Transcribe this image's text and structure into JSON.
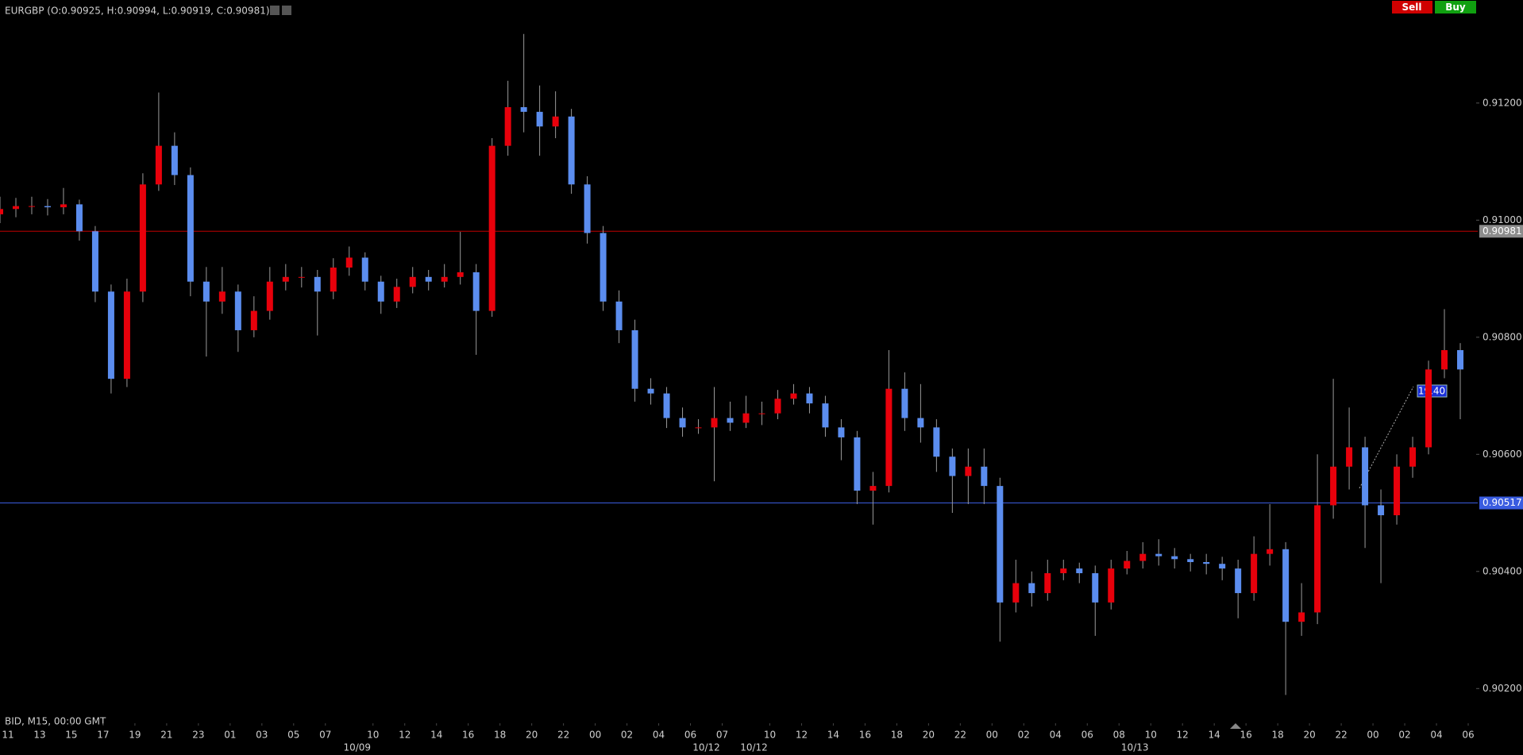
{
  "chart_data": {
    "type": "candlestick",
    "title": "EURGBP (O:0.90925, H:0.90994, L:0.90919, C:0.90981)",
    "footer": "BID, M15, 00:00 GMT",
    "buttons": [
      "Sell",
      "Buy"
    ],
    "annotation": "19.40",
    "up_color": "#e8000b",
    "down_color": "#5b8def",
    "xlim": [
      0,
      372
    ],
    "ylim": [
      0.90157,
      0.91376
    ],
    "yticks": [
      {
        "value": 0.902,
        "label": "0.90200"
      },
      {
        "value": 0.904,
        "label": "0.90400"
      },
      {
        "value": 0.906,
        "label": "0.90600"
      },
      {
        "value": 0.908,
        "label": "0.90800"
      },
      {
        "value": 0.91,
        "label": "0.91000"
      },
      {
        "value": 0.912,
        "label": "0.91200"
      }
    ],
    "xticks": [
      {
        "value": 2,
        "label": "11"
      },
      {
        "value": 10,
        "label": "13"
      },
      {
        "value": 18,
        "label": "15"
      },
      {
        "value": 26,
        "label": "17"
      },
      {
        "value": 34,
        "label": "19"
      },
      {
        "value": 42,
        "label": "21"
      },
      {
        "value": 50,
        "label": "23"
      },
      {
        "value": 58,
        "label": "01"
      },
      {
        "value": 66,
        "label": "03"
      },
      {
        "value": 74,
        "label": "05"
      },
      {
        "value": 82,
        "label": "07"
      },
      {
        "value": 94,
        "label": "10"
      },
      {
        "value": 102,
        "label": "12"
      },
      {
        "value": 110,
        "label": "14"
      },
      {
        "value": 118,
        "label": "16"
      },
      {
        "value": 126,
        "label": "18"
      },
      {
        "value": 134,
        "label": "20"
      },
      {
        "value": 142,
        "label": "22"
      },
      {
        "value": 150,
        "label": "00"
      },
      {
        "value": 158,
        "label": "02"
      },
      {
        "value": 166,
        "label": "04"
      },
      {
        "value": 174,
        "label": "06"
      },
      {
        "value": 182,
        "label": "07"
      },
      {
        "value": 194,
        "label": "10"
      },
      {
        "value": 202,
        "label": "12"
      },
      {
        "value": 210,
        "label": "14"
      },
      {
        "value": 218,
        "label": "16"
      },
      {
        "value": 226,
        "label": "18"
      },
      {
        "value": 234,
        "label": "20"
      },
      {
        "value": 242,
        "label": "22"
      },
      {
        "value": 250,
        "label": "00"
      },
      {
        "value": 258,
        "label": "02"
      },
      {
        "value": 266,
        "label": "04"
      },
      {
        "value": 274,
        "label": "06"
      },
      {
        "value": 282,
        "label": "08"
      },
      {
        "value": 290,
        "label": "10"
      },
      {
        "value": 298,
        "label": "12"
      },
      {
        "value": 306,
        "label": "14"
      },
      {
        "value": 314,
        "label": "16"
      },
      {
        "value": 322,
        "label": "18"
      },
      {
        "value": 330,
        "label": "20"
      },
      {
        "value": 338,
        "label": "22"
      },
      {
        "value": 346,
        "label": "00"
      },
      {
        "value": 354,
        "label": "02"
      },
      {
        "value": 362,
        "label": "04"
      },
      {
        "value": 370,
        "label": "06"
      }
    ],
    "date_labels": [
      {
        "value": 90,
        "label": "10/09"
      },
      {
        "value": 178,
        "label": "10/12"
      },
      {
        "value": 190,
        "label": "10/12"
      },
      {
        "value": 286,
        "label": "10/13"
      }
    ],
    "hlines": [
      {
        "value": 0.90981,
        "label": "0.90981",
        "color": "#c00000",
        "label_bg": "#8c8c8c"
      },
      {
        "value": 0.90517,
        "label": "0.90517",
        "color": "#3a5ce0",
        "label_bg": "#3a5ce0"
      }
    ],
    "x": [
      0,
      4,
      8,
      12,
      16,
      20,
      24,
      28,
      32,
      36,
      40,
      44,
      48,
      52,
      56,
      60,
      64,
      68,
      72,
      76,
      80,
      84,
      88,
      92,
      96,
      100,
      104,
      108,
      112,
      116,
      120,
      124,
      128,
      132,
      136,
      140,
      144,
      148,
      152,
      156,
      160,
      164,
      168,
      172,
      176,
      180,
      184,
      188,
      192,
      196,
      200,
      204,
      208,
      212,
      216,
      220,
      224,
      228,
      232,
      236,
      240,
      244,
      248,
      252,
      256,
      260,
      264,
      268,
      272,
      276,
      280,
      284,
      288,
      292,
      296,
      300,
      304,
      308,
      312,
      316,
      320,
      324,
      328,
      332,
      336,
      340,
      344,
      348,
      352,
      356,
      360,
      364,
      368
    ],
    "open": [
      0.9101,
      0.91019,
      0.91024,
      0.91024,
      0.91022,
      0.91027,
      0.90981,
      0.90878,
      0.90729,
      0.90878,
      0.91061,
      0.91127,
      0.91077,
      0.90895,
      0.90861,
      0.90878,
      0.90812,
      0.90845,
      0.90895,
      0.90903,
      0.90903,
      0.90878,
      0.90919,
      0.90936,
      0.90895,
      0.90861,
      0.90886,
      0.90903,
      0.90895,
      0.90903,
      0.90911,
      0.90845,
      0.91127,
      0.91193,
      0.91185,
      0.9116,
      0.91177,
      0.91061,
      0.90978,
      0.90861,
      0.90812,
      0.90712,
      0.90704,
      0.90662,
      0.90646,
      0.90646,
      0.90662,
      0.90654,
      0.9067,
      0.9067,
      0.90695,
      0.90704,
      0.90687,
      0.90646,
      0.90629,
      0.90538,
      0.90546,
      0.90712,
      0.90662,
      0.90646,
      0.90596,
      0.90563,
      0.90579,
      0.90546,
      0.90347,
      0.9038,
      0.90363,
      0.90397,
      0.90405,
      0.90397,
      0.90347,
      0.90405,
      0.90418,
      0.9043,
      0.90426,
      0.90421,
      0.90416,
      0.90413,
      0.90405,
      0.90363,
      0.9043,
      0.90438,
      0.90314,
      0.9033,
      0.90513,
      0.90579,
      0.90612,
      0.90513,
      0.90496,
      0.90579,
      0.90612,
      0.90745,
      0.90778
    ],
    "high": [
      0.9104,
      0.91038,
      0.9104,
      0.91036,
      0.91055,
      0.91035,
      0.9099,
      0.9089,
      0.909,
      0.9108,
      0.91218,
      0.9115,
      0.9109,
      0.9092,
      0.9092,
      0.9089,
      0.9087,
      0.9092,
      0.90925,
      0.9092,
      0.90915,
      0.90935,
      0.90955,
      0.90945,
      0.90905,
      0.909,
      0.9092,
      0.90915,
      0.90925,
      0.9098,
      0.90925,
      0.9114,
      0.91238,
      0.91318,
      0.9123,
      0.9122,
      0.9119,
      0.91075,
      0.9099,
      0.9088,
      0.9083,
      0.9073,
      0.90715,
      0.9068,
      0.9066,
      0.90715,
      0.9069,
      0.907,
      0.9069,
      0.9071,
      0.9072,
      0.90715,
      0.907,
      0.9066,
      0.9064,
      0.9057,
      0.90778,
      0.9074,
      0.9072,
      0.9066,
      0.9061,
      0.9061,
      0.9061,
      0.9056,
      0.9042,
      0.904,
      0.9042,
      0.9042,
      0.90415,
      0.9041,
      0.9042,
      0.90435,
      0.9045,
      0.90455,
      0.9044,
      0.9043,
      0.9043,
      0.90425,
      0.9042,
      0.9046,
      0.90515,
      0.9045,
      0.9038,
      0.906,
      0.90729,
      0.9068,
      0.9063,
      0.9054,
      0.906,
      0.9063,
      0.9076,
      0.90848,
      0.9079
    ],
    "low": [
      0.90995,
      0.91005,
      0.9101,
      0.91008,
      0.9101,
      0.90965,
      0.9086,
      0.90704,
      0.90715,
      0.9086,
      0.9105,
      0.9106,
      0.9087,
      0.90767,
      0.9084,
      0.90775,
      0.908,
      0.9083,
      0.9088,
      0.90885,
      0.90803,
      0.90865,
      0.90905,
      0.9088,
      0.9084,
      0.9085,
      0.90875,
      0.9088,
      0.90885,
      0.9089,
      0.9077,
      0.90835,
      0.9111,
      0.9115,
      0.9111,
      0.9114,
      0.91045,
      0.9096,
      0.90845,
      0.9079,
      0.9069,
      0.90685,
      0.90645,
      0.9063,
      0.90635,
      0.90554,
      0.9064,
      0.90645,
      0.9065,
      0.9066,
      0.90685,
      0.9067,
      0.9063,
      0.9059,
      0.90515,
      0.9048,
      0.90535,
      0.9064,
      0.9062,
      0.9057,
      0.905,
      0.90515,
      0.90515,
      0.9028,
      0.9033,
      0.9034,
      0.9035,
      0.90385,
      0.9038,
      0.9029,
      0.90335,
      0.90395,
      0.90405,
      0.9041,
      0.90405,
      0.904,
      0.90395,
      0.90385,
      0.9032,
      0.9035,
      0.9041,
      0.90189,
      0.9029,
      0.9031,
      0.9049,
      0.9054,
      0.9044,
      0.9038,
      0.9048,
      0.9056,
      0.906,
      0.9073,
      0.9066
    ],
    "close": [
      0.91019,
      0.91024,
      0.91024,
      0.91022,
      0.91027,
      0.90981,
      0.90878,
      0.90729,
      0.90878,
      0.91061,
      0.91127,
      0.91077,
      0.90895,
      0.90861,
      0.90878,
      0.90812,
      0.90845,
      0.90895,
      0.90903,
      0.90903,
      0.90878,
      0.90919,
      0.90936,
      0.90895,
      0.90861,
      0.90886,
      0.90903,
      0.90895,
      0.90903,
      0.90911,
      0.90845,
      0.91127,
      0.91193,
      0.91185,
      0.9116,
      0.91177,
      0.91061,
      0.90978,
      0.90861,
      0.90812,
      0.90712,
      0.90704,
      0.90662,
      0.90646,
      0.90646,
      0.90662,
      0.90654,
      0.9067,
      0.9067,
      0.90695,
      0.90704,
      0.90687,
      0.90646,
      0.90629,
      0.90538,
      0.90546,
      0.90712,
      0.90662,
      0.90646,
      0.90596,
      0.90563,
      0.90579,
      0.90546,
      0.90347,
      0.9038,
      0.90363,
      0.90397,
      0.90405,
      0.90397,
      0.90347,
      0.90405,
      0.90418,
      0.9043,
      0.90426,
      0.90421,
      0.90416,
      0.90413,
      0.90405,
      0.90363,
      0.9043,
      0.90438,
      0.90314,
      0.9033,
      0.90513,
      0.90579,
      0.90612,
      0.90513,
      0.90496,
      0.90579,
      0.90612,
      0.90745,
      0.90778,
      0.90745
    ]
  }
}
